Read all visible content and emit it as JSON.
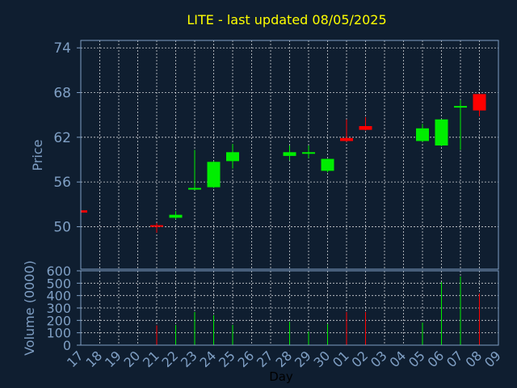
{
  "chart_data": {
    "type": "candlestick",
    "title": "LITE - last updated 08/05/2025",
    "xlabel": "Day",
    "ylabel": "Price",
    "y2label": "Volume (0000)",
    "categories": [
      "17",
      "18",
      "19",
      "20",
      "21",
      "22",
      "23",
      "24",
      "25",
      "26",
      "27",
      "28",
      "29",
      "30",
      "01",
      "02",
      "03",
      "04",
      "05",
      "06",
      "07",
      "08",
      "09"
    ],
    "open": [
      52.2,
      null,
      null,
      null,
      50.2,
      51.2,
      55.0,
      55.3,
      58.8,
      null,
      null,
      59.5,
      59.8,
      57.5,
      61.9,
      63.5,
      null,
      null,
      61.5,
      60.9,
      66.0,
      67.8,
      null
    ],
    "high": [
      52.2,
      null,
      null,
      null,
      50.5,
      52.1,
      60.3,
      58.8,
      61.1,
      null,
      null,
      60.9,
      60.9,
      59.1,
      64.4,
      64.7,
      null,
      null,
      63.8,
      64.4,
      67.0,
      67.8,
      null
    ],
    "low": [
      51.9,
      null,
      null,
      null,
      49.2,
      51.0,
      54.9,
      55.2,
      57.8,
      null,
      null,
      58.9,
      59.2,
      57.3,
      61.4,
      62.9,
      null,
      null,
      61.4,
      60.8,
      60.3,
      64.8,
      null
    ],
    "close": [
      51.9,
      null,
      null,
      null,
      50.0,
      51.6,
      55.2,
      58.7,
      60.0,
      null,
      null,
      60.0,
      60.0,
      59.1,
      61.5,
      63.0,
      null,
      null,
      63.2,
      64.4,
      66.2,
      65.6,
      null
    ],
    "volume": [
      null,
      null,
      null,
      null,
      160,
      163,
      267,
      241,
      163,
      null,
      null,
      189,
      111,
      170,
      267,
      267,
      null,
      null,
      183,
      509,
      554,
      417,
      null
    ],
    "up_color": "#00ee00",
    "down_color": "#ff0000",
    "ylim": [
      44.3,
      75
    ],
    "yticks": [
      50,
      56,
      62,
      68,
      74
    ],
    "y2lim": [
      0,
      600
    ],
    "y2ticks": [
      0,
      100,
      200,
      300,
      400,
      500,
      600
    ],
    "grid": true
  }
}
